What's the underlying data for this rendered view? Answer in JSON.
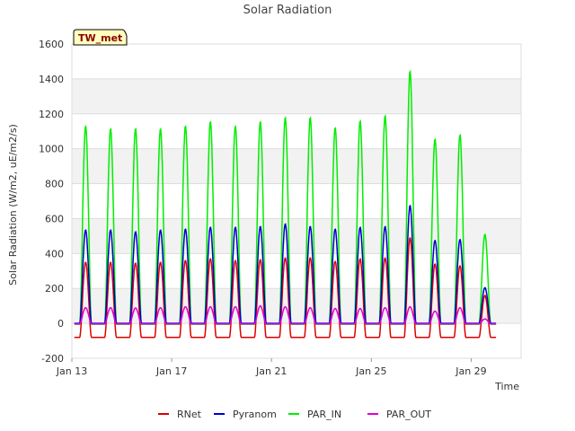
{
  "chart_data": {
    "type": "line",
    "title": "Solar Radiation",
    "xlabel": "Time",
    "ylabel": "Solar Radiation (W/m2, uE/m2/s)",
    "ylim": [
      -200,
      1600
    ],
    "yticks": [
      -200,
      0,
      200,
      400,
      600,
      800,
      1000,
      1200,
      1400,
      1600
    ],
    "xlim": [
      "2000-01-13",
      "2000-01-31"
    ],
    "xticks": [
      {
        "date": "2000-01-13",
        "label": "Jan 13"
      },
      {
        "date": "2000-01-17",
        "label": "Jan 17"
      },
      {
        "date": "2000-01-21",
        "label": "Jan 21"
      },
      {
        "date": "2000-01-25",
        "label": "Jan 25"
      },
      {
        "date": "2000-01-29",
        "label": "Jan 29"
      }
    ],
    "grid": true,
    "badge": "TW_met",
    "legend_position": "bottom",
    "day_peaks": {
      "dates": [
        "2000-01-13",
        "2000-01-14",
        "2000-01-15",
        "2000-01-16",
        "2000-01-17",
        "2000-01-18",
        "2000-01-19",
        "2000-01-20",
        "2000-01-21",
        "2000-01-22",
        "2000-01-23",
        "2000-01-24",
        "2000-01-25",
        "2000-01-26",
        "2000-01-27",
        "2000-01-28",
        "2000-01-29"
      ],
      "peak_time_fraction_of_day": 0.55
    },
    "series": [
      {
        "name": "RNet",
        "color": "#dd0000",
        "night_value": -80,
        "daily_peak": [
          350,
          350,
          345,
          350,
          360,
          370,
          360,
          365,
          375,
          375,
          355,
          370,
          375,
          490,
          340,
          330,
          160
        ]
      },
      {
        "name": "Pyranom",
        "color": "#0000cc",
        "night_value": 0,
        "daily_peak": [
          535,
          535,
          525,
          535,
          540,
          550,
          550,
          555,
          570,
          555,
          540,
          550,
          555,
          675,
          475,
          480,
          205
        ]
      },
      {
        "name": "PAR_IN",
        "color": "#00ee00",
        "night_value": -5,
        "daily_peak": [
          1130,
          1115,
          1115,
          1115,
          1130,
          1155,
          1130,
          1155,
          1180,
          1180,
          1120,
          1160,
          1190,
          1445,
          1055,
          1080,
          510
        ]
      },
      {
        "name": "PAR_OUT",
        "color": "#dd00dd",
        "night_value": -3,
        "daily_peak": [
          90,
          90,
          88,
          90,
          95,
          95,
          95,
          100,
          95,
          90,
          85,
          85,
          90,
          95,
          70,
          90,
          25
        ]
      }
    ]
  }
}
